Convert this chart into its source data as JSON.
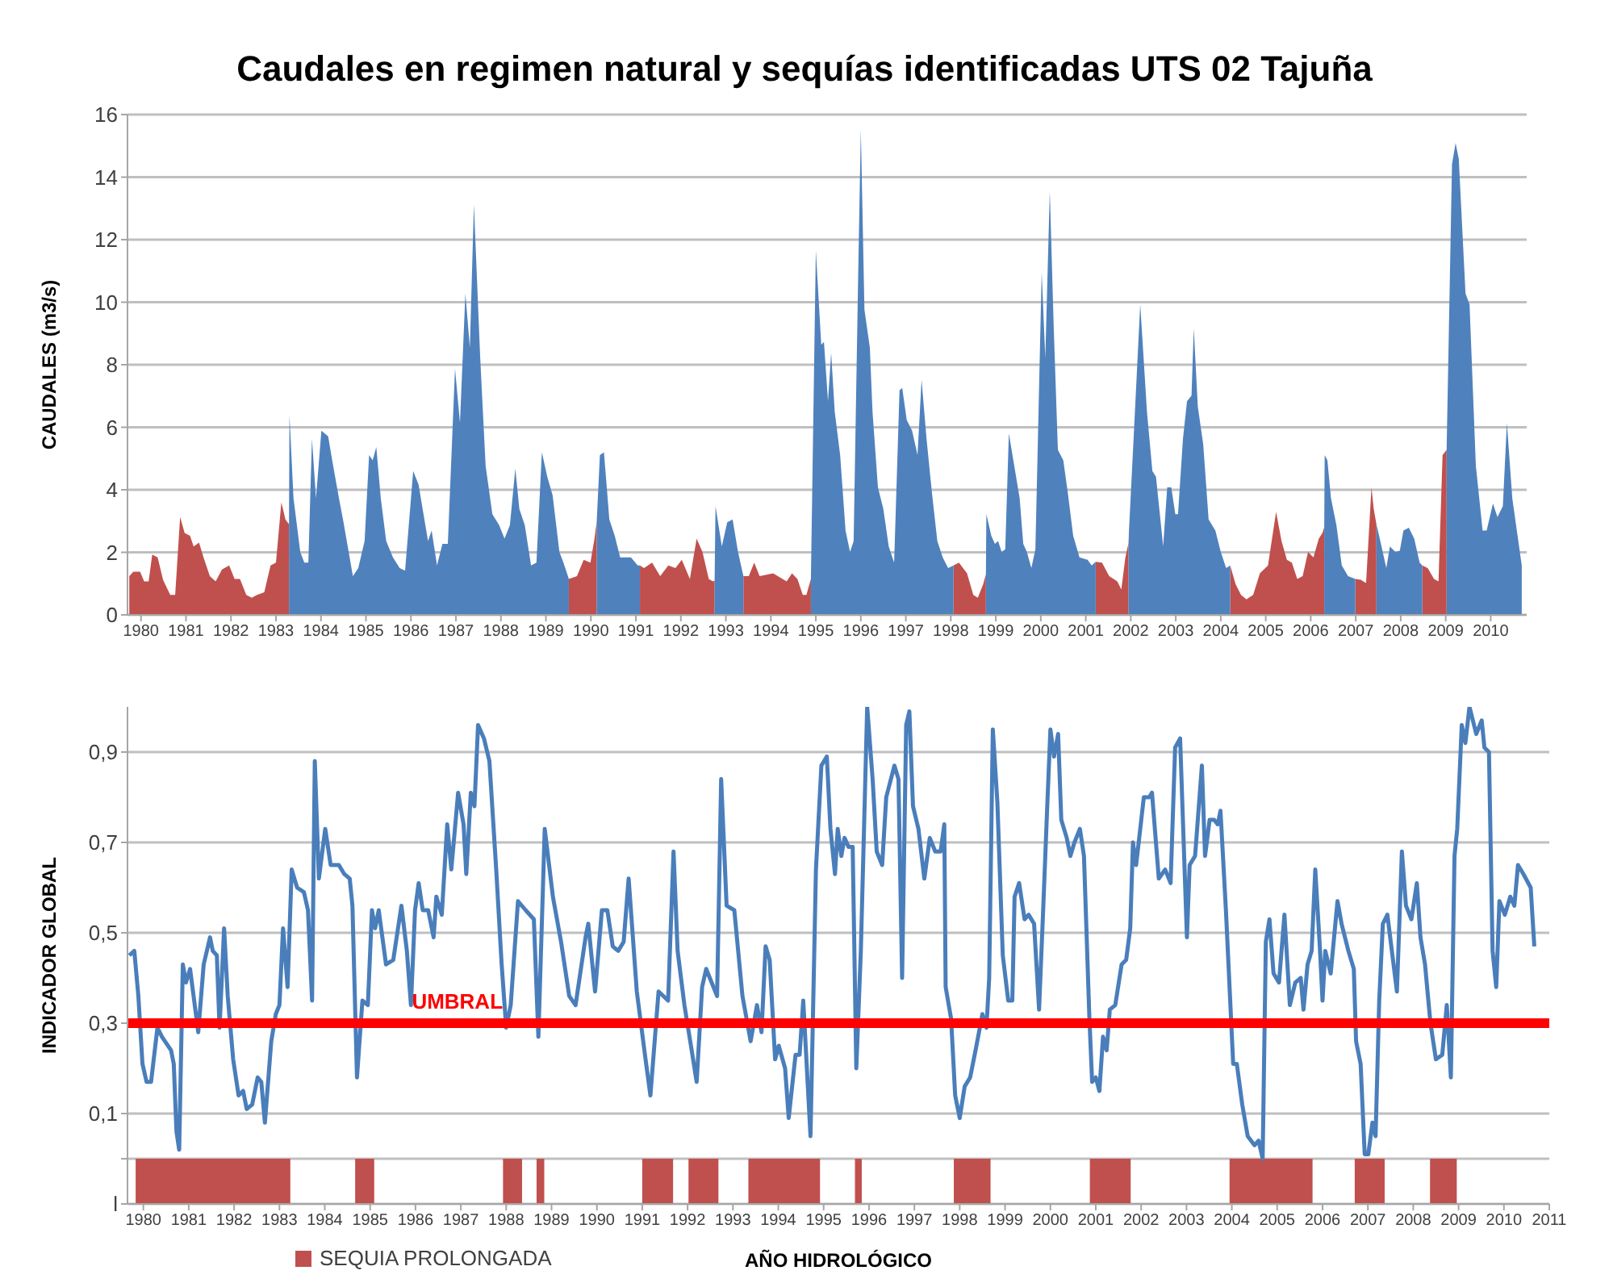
{
  "chart_data": [
    {
      "type": "area",
      "title": "Caudales en regimen natural y sequías identificadas UTS 02 Tajuña",
      "ylabel": "CAUDALES (m3/s)",
      "xlim": [
        1979.7,
        2010.8
      ],
      "xticks": [
        1980,
        1981,
        1982,
        1983,
        1984,
        1985,
        1986,
        1987,
        1988,
        1989,
        1990,
        1991,
        1992,
        1993,
        1994,
        1995,
        1996,
        1997,
        1998,
        1999,
        2000,
        2001,
        2002,
        2003,
        2004,
        2005,
        2006,
        2007,
        2008,
        2009,
        2010
      ],
      "ylim": [
        0,
        16
      ],
      "yticks": [
        0,
        2,
        4,
        6,
        8,
        10,
        12,
        14,
        16
      ],
      "grid": "y",
      "legend": false,
      "series": [
        {
          "color": "#c0504d",
          "x": [
            1979.74,
            1979.83,
            1979.98,
            1980.07,
            1980.17,
            1980.25,
            1980.37,
            1980.49,
            1980.65,
            1980.76,
            1980.87,
            1980.97,
            1981.09,
            1981.17,
            1981.29,
            1981.39,
            1981.53,
            1981.66,
            1981.8,
            1981.96,
            1982.08,
            1982.2,
            1982.34,
            1982.46,
            1982.58,
            1982.74,
            1982.88,
            1983.0,
            1983.12,
            1983.21,
            1983.29,
            1986,
            1989.51,
            1989.69,
            1989.84,
            1989.99,
            1990.08,
            1990.13,
            1990.6,
            1991.09,
            1991.18,
            1991.36,
            1991.54,
            1991.72,
            1991.88,
            1992.02,
            1992.2,
            1992.35,
            1992.48,
            1992.62,
            1992.71,
            1992.75,
            1993.0,
            1993.39,
            1993.51,
            1993.63,
            1993.75,
            1994.05,
            1994.35,
            1994.47,
            1994.59,
            1994.71,
            1994.79,
            1994.89,
            1996,
            1998.06,
            1998.18,
            1998.36,
            1998.5,
            1998.6,
            1998.72,
            1998.78,
            2000,
            2001.22,
            2001.36,
            2001.52,
            2001.7,
            2001.79,
            2001.88,
            2001.95,
            2003,
            2004.21,
            2004.33,
            2004.45,
            2004.57,
            2004.72,
            2004.87,
            2005.05,
            2005.23,
            2005.35,
            2005.47,
            2005.58,
            2005.7,
            2005.82,
            2005.94,
            2006.06,
            2006.18,
            2006.26,
            2006.3,
            2006.6,
            2006.99,
            2007.11,
            2007.23,
            2007.35,
            2007.4,
            2007.46,
            2008,
            2008.48,
            2008.6,
            2008.74,
            2008.84,
            2008.93,
            2009.02
          ],
          "values": [
            1.24,
            1.38,
            1.38,
            1.07,
            1.07,
            1.93,
            1.84,
            1.12,
            0.64,
            0.64,
            3.13,
            2.62,
            2.53,
            2.19,
            2.31,
            1.84,
            1.24,
            1.07,
            1.45,
            1.58,
            1.15,
            1.15,
            0.64,
            0.55,
            0.64,
            0.72,
            1.58,
            1.67,
            3.6,
            3.05,
            2.9,
            null,
            1.15,
            1.24,
            1.76,
            1.67,
            2.44,
            3.0,
            null,
            1.58,
            1.5,
            1.67,
            1.24,
            1.58,
            1.5,
            1.76,
            1.15,
            2.44,
            2.01,
            1.15,
            1.07,
            1.1,
            null,
            1.24,
            1.24,
            1.67,
            1.24,
            1.33,
            1.07,
            1.33,
            1.15,
            0.64,
            0.64,
            1.15,
            null,
            1.58,
            1.67,
            1.33,
            0.64,
            0.55,
            0.98,
            1.3,
            null,
            1.7,
            1.67,
            1.24,
            1.07,
            0.81,
            1.84,
            2.3,
            null,
            1.58,
            0.98,
            0.64,
            0.5,
            0.64,
            1.33,
            1.58,
            3.3,
            2.36,
            1.76,
            1.67,
            1.15,
            1.24,
            2.01,
            1.84,
            2.44,
            2.62,
            2.8,
            null,
            1.15,
            1.12,
            1.02,
            4.08,
            3.39,
            2.9,
            null,
            1.58,
            1.5,
            1.15,
            1.07,
            5.11,
            5.28
          ]
        },
        {
          "color": "#4f81bd",
          "x": [
            1983.29,
            1983.3,
            1983.39,
            1983.54,
            1983.63,
            1983.72,
            1983.8,
            1983.89,
            1984.01,
            1984.16,
            1984.25,
            1984.4,
            1984.49,
            1984.71,
            1984.83,
            1984.97,
            1985.07,
            1985.15,
            1985.23,
            1985.33,
            1985.45,
            1985.6,
            1985.75,
            1985.87,
            1986.05,
            1986.17,
            1986.26,
            1986.38,
            1986.46,
            1986.58,
            1986.7,
            1986.82,
            1986.98,
            1987.09,
            1987.21,
            1987.31,
            1987.4,
            1987.54,
            1987.66,
            1987.81,
            1987.96,
            1988.08,
            1988.2,
            1988.32,
            1988.41,
            1988.53,
            1988.67,
            1988.79,
            1988.91,
            1989.03,
            1989.15,
            1989.3,
            1989.39,
            1989.51,
            1989.8,
            1990.13,
            1990.2,
            1990.29,
            1990.41,
            1990.53,
            1990.65,
            1990.89,
            1991.04,
            1991.09,
            1992,
            1992.75,
            1992.77,
            1992.91,
            1993.03,
            1993.15,
            1993.27,
            1993.39,
            1994,
            1994.89,
            1995.0,
            1995.12,
            1995.18,
            1995.27,
            1995.34,
            1995.42,
            1995.54,
            1995.66,
            1995.76,
            1995.84,
            1995.94,
            1996.0,
            1996.08,
            1996.2,
            1996.26,
            1996.38,
            1996.5,
            1996.62,
            1996.74,
            1996.86,
            1996.92,
            1997.02,
            1997.14,
            1997.26,
            1997.35,
            1997.46,
            1997.58,
            1997.7,
            1997.82,
            1997.94,
            1998.06,
            1998.4,
            1998.78,
            1998.79,
            1998.9,
            1998.98,
            1999.05,
            1999.13,
            1999.21,
            1999.29,
            1999.41,
            1999.53,
            1999.61,
            1999.69,
            1999.79,
            1999.88,
            2000.02,
            2000.1,
            2000.2,
            2000.29,
            2000.38,
            2000.5,
            2000.6,
            2000.72,
            2000.86,
            2001.04,
            2001.13,
            2001.22,
            2001.5,
            2001.95,
            2001.96,
            2002.08,
            2002.21,
            2002.36,
            2002.48,
            2002.56,
            2002.72,
            2002.81,
            2002.9,
            2002.99,
            2003.05,
            2003.16,
            2003.25,
            2003.35,
            2003.4,
            2003.49,
            2003.61,
            2003.73,
            2003.88,
            2004.0,
            2004.12,
            2004.21,
            2005,
            2006.3,
            2006.31,
            2006.37,
            2006.45,
            2006.57,
            2006.69,
            2006.83,
            2006.99,
            2007.2,
            2007.46,
            2007.52,
            2007.68,
            2007.76,
            2007.88,
            2007.98,
            2008.06,
            2008.18,
            2008.3,
            2008.42,
            2008.48,
            2008.7,
            2009.02,
            2009.14,
            2009.22,
            2009.29,
            2009.44,
            2009.53,
            2009.67,
            2009.82,
            2009.91,
            2010.05,
            2010.15,
            2010.27,
            2010.36,
            2010.48,
            2010.69
          ],
          "values": [
            2.9,
            6.4,
            3.73,
            2.01,
            1.67,
            1.67,
            5.63,
            3.73,
            5.89,
            5.71,
            4.94,
            3.73,
            3.05,
            1.24,
            1.5,
            2.36,
            5.11,
            4.94,
            5.37,
            3.73,
            2.36,
            1.84,
            1.5,
            1.41,
            4.6,
            4.17,
            3.39,
            2.36,
            2.7,
            1.58,
            2.27,
            2.27,
            7.87,
            6.14,
            10.28,
            8.55,
            13.12,
            8.21,
            4.77,
            3.22,
            2.87,
            2.44,
            2.87,
            4.68,
            3.39,
            2.87,
            1.58,
            1.67,
            5.2,
            4.42,
            3.82,
            2.01,
            1.67,
            1.15,
            null,
            3.0,
            5.11,
            5.2,
            3.05,
            2.53,
            1.84,
            1.84,
            1.58,
            1.58,
            null,
            1.1,
            3.48,
            2.19,
            2.96,
            3.05,
            2.01,
            1.24,
            null,
            1.15,
            11.65,
            8.64,
            8.73,
            6.83,
            8.38,
            6.49,
            5.11,
            2.7,
            2.01,
            2.36,
            10.79,
            15.52,
            9.76,
            8.55,
            6.49,
            4.08,
            3.39,
            2.19,
            1.67,
            7.18,
            7.26,
            6.23,
            5.89,
            5.11,
            7.52,
            5.63,
            3.91,
            2.36,
            1.84,
            1.5,
            1.58,
            null,
            1.3,
            3.22,
            2.53,
            2.27,
            2.36,
            2.01,
            2.1,
            5.8,
            4.77,
            3.73,
            2.27,
            2.01,
            1.5,
            2.1,
            10.96,
            8.21,
            13.55,
            9.07,
            5.28,
            4.94,
            3.91,
            2.53,
            1.84,
            1.76,
            1.58,
            1.7,
            null,
            2.3,
            2.7,
            6.14,
            9.93,
            6.49,
            4.6,
            4.42,
            2.19,
            4.08,
            4.08,
            3.22,
            3.22,
            5.63,
            6.83,
            7.01,
            9.16,
            6.66,
            5.46,
            3.05,
            2.7,
            2.01,
            1.5,
            1.58,
            null,
            2.8,
            5.11,
            4.94,
            3.73,
            2.87,
            1.58,
            1.24,
            1.15,
            null,
            2.9,
            2.53,
            1.5,
            2.19,
            2.01,
            2.05,
            2.7,
            2.79,
            2.44,
            1.67,
            1.58,
            null,
            5.28,
            14.41,
            15.09,
            14.58,
            10.28,
            9.93,
            4.77,
            2.7,
            2.7,
            3.56,
            3.13,
            3.48,
            6.14,
            3.73,
            1.58
          ]
        }
      ]
    },
    {
      "type": "line",
      "xlabel": "AÑO HIDROLÓGICO",
      "ylabel": "INDICADOR GLOBAL",
      "xlim": [
        1979.65,
        2011
      ],
      "xticks": [
        1980,
        1981,
        1982,
        1983,
        1984,
        1985,
        1986,
        1987,
        1988,
        1989,
        1990,
        1991,
        1992,
        1993,
        1994,
        1995,
        1996,
        1997,
        1998,
        1999,
        2000,
        2001,
        2002,
        2003,
        2004,
        2005,
        2006,
        2007,
        2008,
        2009,
        2010,
        2011
      ],
      "ylim": [
        -0.1,
        1.0
      ],
      "yticks": [
        {
          "value": -0.1,
          "label": "l"
        },
        {
          "value": 0,
          "label": null
        },
        {
          "value": 0.1,
          "label": "0,1"
        },
        {
          "value": 0.3,
          "label": "0,3"
        },
        {
          "value": 0.5,
          "label": "0,5"
        },
        {
          "value": 0.7,
          "label": "0,7"
        },
        {
          "value": 0.9,
          "label": "0,9"
        }
      ],
      "grid": "y",
      "legend": "bottom left",
      "ref_lines": [
        {
          "axis": "y",
          "value": 0.3,
          "label": "UMBRAL",
          "color": "#ff0000"
        }
      ],
      "bands": [
        {
          "axis": "x",
          "from": 1979.83,
          "to": 1983.24,
          "label": "SEQUIA PROLONGADA",
          "color": "#c0504d"
        },
        {
          "axis": "x",
          "from": 1984.67,
          "to": 1985.09,
          "color": "#c0504d"
        },
        {
          "axis": "x",
          "from": 1987.93,
          "to": 1988.35,
          "color": "#c0504d"
        },
        {
          "axis": "x",
          "from": 1988.67,
          "to": 1988.84,
          "color": "#c0504d"
        },
        {
          "axis": "x",
          "from": 1991.0,
          "to": 1991.68,
          "color": "#c0504d"
        },
        {
          "axis": "x",
          "from": 1992.02,
          "to": 1992.68,
          "color": "#c0504d"
        },
        {
          "axis": "x",
          "from": 1993.34,
          "to": 1994.92,
          "color": "#c0504d"
        },
        {
          "axis": "x",
          "from": 1995.69,
          "to": 1995.84,
          "color": "#c0504d"
        },
        {
          "axis": "x",
          "from": 1997.87,
          "to": 1998.68,
          "color": "#c0504d"
        },
        {
          "axis": "x",
          "from": 2000.87,
          "to": 2001.77,
          "color": "#c0504d"
        },
        {
          "axis": "x",
          "from": 2003.95,
          "to": 2005.78,
          "color": "#c0504d"
        },
        {
          "axis": "x",
          "from": 2006.71,
          "to": 2007.37,
          "color": "#c0504d"
        },
        {
          "axis": "x",
          "from": 2008.37,
          "to": 2008.96,
          "color": "#c0504d"
        }
      ],
      "series": [
        {
          "color": "#4a7ebb",
          "x": [
            1979.69,
            1979.8,
            1979.89,
            1979.98,
            1980.07,
            1980.17,
            1980.31,
            1980.41,
            1980.61,
            1980.67,
            1980.73,
            1980.79,
            1980.87,
            1980.94,
            1981.03,
            1981.21,
            1981.33,
            1981.47,
            1981.53,
            1981.62,
            1981.68,
            1981.78,
            1981.86,
            1981.98,
            1982.1,
            1982.2,
            1982.28,
            1982.4,
            1982.52,
            1982.6,
            1982.68,
            1982.82,
            1982.92,
            1983.0,
            1983.08,
            1983.18,
            1983.27,
            1983.39,
            1983.54,
            1983.63,
            1983.72,
            1983.78,
            1983.87,
            1984.01,
            1984.13,
            1984.31,
            1984.43,
            1984.55,
            1984.61,
            1984.71,
            1984.83,
            1984.95,
            1985.04,
            1985.11,
            1985.19,
            1985.35,
            1985.51,
            1985.69,
            1985.81,
            1985.9,
            1985.99,
            1986.07,
            1986.16,
            1986.28,
            1986.4,
            1986.46,
            1986.58,
            1986.7,
            1986.79,
            1986.94,
            1987.06,
            1987.12,
            1987.22,
            1987.3,
            1987.38,
            1987.51,
            1987.63,
            1987.78,
            1987.9,
            1988.0,
            1988.1,
            1988.26,
            1988.43,
            1988.61,
            1988.71,
            1988.85,
            1989.03,
            1989.21,
            1989.39,
            1989.53,
            1989.75,
            1989.81,
            1989.96,
            1990.11,
            1990.23,
            1990.35,
            1990.47,
            1990.59,
            1990.7,
            1990.88,
            1991.06,
            1991.18,
            1991.36,
            1991.57,
            1991.69,
            1991.78,
            1991.93,
            1992.09,
            1992.2,
            1992.32,
            1992.41,
            1992.65,
            1992.74,
            1992.86,
            1993.03,
            1993.21,
            1993.39,
            1993.53,
            1993.63,
            1993.72,
            1993.81,
            1993.93,
            1994.01,
            1994.15,
            1994.23,
            1994.38,
            1994.47,
            1994.55,
            1994.71,
            1994.83,
            1994.95,
            1995.07,
            1995.15,
            1995.25,
            1995.31,
            1995.39,
            1995.46,
            1995.55,
            1995.64,
            1995.72,
            1995.82,
            1995.96,
            1996.08,
            1996.17,
            1996.29,
            1996.38,
            1996.56,
            1996.65,
            1996.73,
            1996.82,
            1996.89,
            1996.97,
            1997.09,
            1997.22,
            1997.34,
            1997.46,
            1997.58,
            1997.66,
            1997.69,
            1997.81,
            1997.9,
            1998.0,
            1998.11,
            1998.23,
            1998.35,
            1998.5,
            1998.59,
            1998.65,
            1998.73,
            1998.83,
            1998.95,
            1999.07,
            1999.16,
            1999.21,
            1999.31,
            1999.43,
            1999.52,
            1999.64,
            1999.75,
            1999.84,
            1999.93,
            2000.0,
            2000.08,
            2000.17,
            2000.24,
            2000.36,
            2000.44,
            2000.53,
            2000.65,
            2000.74,
            2000.86,
            2000.92,
            2001.0,
            2001.08,
            2001.16,
            2001.24,
            2001.31,
            2001.43,
            2001.57,
            2001.67,
            2001.76,
            2001.82,
            2001.89,
            2002.06,
            2002.18,
            2002.24,
            2002.39,
            2002.53,
            2002.65,
            2002.75,
            2002.86,
            2003.01,
            2003.07,
            2003.19,
            2003.34,
            2003.41,
            2003.51,
            2003.61,
            2003.69,
            2003.75,
            2003.87,
            2004.03,
            2004.11,
            2004.23,
            2004.35,
            2004.5,
            2004.59,
            2004.68,
            2004.75,
            2004.83,
            2004.92,
            2005.04,
            2005.16,
            2005.28,
            2005.4,
            2005.52,
            2005.58,
            2005.67,
            2005.76,
            2005.84,
            2005.94,
            2006.0,
            2006.06,
            2006.18,
            2006.33,
            2006.42,
            2006.57,
            2006.69,
            2006.74,
            2006.84,
            2006.93,
            2007.01,
            2007.1,
            2007.17,
            2007.25,
            2007.33,
            2007.43,
            2007.64,
            2007.75,
            2007.84,
            2007.96,
            2008.08,
            2008.16,
            2008.26,
            2008.38,
            2008.5,
            2008.64,
            2008.74,
            2008.83,
            2008.91,
            2008.97,
            2009.07,
            2009.15,
            2009.24,
            2009.39,
            2009.51,
            2009.57,
            2009.67,
            2009.75,
            2009.83,
            2009.9,
            2010.02,
            2010.14,
            2010.23,
            2010.31,
            2010.43,
            2010.59,
            2010.67
          ],
          "values": [
            0.45,
            0.46,
            0.36,
            0.21,
            0.17,
            0.17,
            0.29,
            0.27,
            0.24,
            0.21,
            0.06,
            0.02,
            0.43,
            0.39,
            0.42,
            0.28,
            0.43,
            0.49,
            0.46,
            0.45,
            0.29,
            0.51,
            0.36,
            0.22,
            0.14,
            0.15,
            0.11,
            0.12,
            0.18,
            0.17,
            0.08,
            0.26,
            0.32,
            0.34,
            0.51,
            0.38,
            0.64,
            0.6,
            0.59,
            0.55,
            0.35,
            0.88,
            0.62,
            0.73,
            0.65,
            0.65,
            0.63,
            0.62,
            0.56,
            0.18,
            0.35,
            0.34,
            0.55,
            0.51,
            0.55,
            0.43,
            0.44,
            0.56,
            0.46,
            0.34,
            0.55,
            0.61,
            0.55,
            0.55,
            0.49,
            0.58,
            0.54,
            0.74,
            0.64,
            0.81,
            0.74,
            0.63,
            0.81,
            0.78,
            0.96,
            0.93,
            0.88,
            0.64,
            0.43,
            0.29,
            0.34,
            0.57,
            0.55,
            0.53,
            0.27,
            0.73,
            0.58,
            0.48,
            0.36,
            0.34,
            0.49,
            0.52,
            0.37,
            0.55,
            0.55,
            0.47,
            0.46,
            0.48,
            0.62,
            0.37,
            0.23,
            0.14,
            0.37,
            0.35,
            0.68,
            0.46,
            0.34,
            0.24,
            0.17,
            0.38,
            0.42,
            0.36,
            0.84,
            0.56,
            0.55,
            0.36,
            0.26,
            0.34,
            0.28,
            0.47,
            0.44,
            0.22,
            0.25,
            0.2,
            0.09,
            0.23,
            0.23,
            0.35,
            0.05,
            0.64,
            0.87,
            0.89,
            0.73,
            0.63,
            0.73,
            0.67,
            0.71,
            0.69,
            0.69,
            0.2,
            0.46,
            1.0,
            0.84,
            0.68,
            0.65,
            0.8,
            0.87,
            0.84,
            0.4,
            0.96,
            0.99,
            0.78,
            0.73,
            0.62,
            0.71,
            0.68,
            0.68,
            0.74,
            0.38,
            0.31,
            0.14,
            0.09,
            0.16,
            0.18,
            0.24,
            0.32,
            0.29,
            0.4,
            0.95,
            0.79,
            0.45,
            0.35,
            0.35,
            0.58,
            0.61,
            0.53,
            0.54,
            0.52,
            0.33,
            0.55,
            0.78,
            0.95,
            0.89,
            0.94,
            0.75,
            0.71,
            0.67,
            0.7,
            0.73,
            0.67,
            0.31,
            0.17,
            0.18,
            0.15,
            0.27,
            0.24,
            0.33,
            0.34,
            0.43,
            0.44,
            0.51,
            0.7,
            0.65,
            0.8,
            0.8,
            0.81,
            0.62,
            0.64,
            0.61,
            0.91,
            0.93,
            0.49,
            0.65,
            0.67,
            0.87,
            0.67,
            0.75,
            0.75,
            0.74,
            0.77,
            0.55,
            0.21,
            0.21,
            0.12,
            0.05,
            0.03,
            0.04,
            0.0,
            0.48,
            0.53,
            0.41,
            0.39,
            0.54,
            0.34,
            0.39,
            0.4,
            0.33,
            0.43,
            0.46,
            0.64,
            0.47,
            0.35,
            0.46,
            0.41,
            0.57,
            0.52,
            0.46,
            0.42,
            0.26,
            0.21,
            0.01,
            0.01,
            0.08,
            0.05,
            0.35,
            0.52,
            0.54,
            0.37,
            0.68,
            0.56,
            0.53,
            0.61,
            0.49,
            0.43,
            0.3,
            0.22,
            0.23,
            0.34,
            0.18,
            0.67,
            0.73,
            0.96,
            0.92,
            1.0,
            0.94,
            0.97,
            0.91,
            0.9,
            0.46,
            0.38,
            0.57,
            0.54,
            0.58,
            0.56,
            0.65,
            0.63,
            0.6,
            0.47
          ]
        }
      ]
    }
  ]
}
